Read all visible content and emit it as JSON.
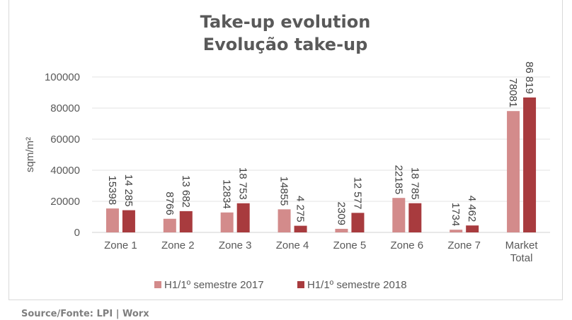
{
  "chart_data": {
    "type": "bar",
    "title": [
      "Take-up evolution",
      "Evolução take-up"
    ],
    "xlabel": "",
    "ylabel": "sqm/m²",
    "ylim": [
      0,
      100000
    ],
    "yticks": [
      0,
      20000,
      40000,
      60000,
      80000,
      100000
    ],
    "ytick_labels": [
      "0",
      "20000",
      "40000",
      "60000",
      "80000",
      "100000"
    ],
    "grid": true,
    "legend_position": "bottom",
    "categories": [
      [
        "Zone 1"
      ],
      [
        "Zone 2"
      ],
      [
        "Zone 3"
      ],
      [
        "Zone 4"
      ],
      [
        "Zone 5"
      ],
      [
        "Zone 6"
      ],
      [
        "Zone 7"
      ],
      [
        "Market",
        "Total"
      ]
    ],
    "series": [
      {
        "name": "H1/1º semestre 2017",
        "color": "#d38b8b",
        "values": [
          15398,
          8766,
          12834,
          14855,
          2309,
          22185,
          1734,
          78081
        ],
        "labels": [
          "15398",
          "8766",
          "12834",
          "14855",
          "2309",
          "22185",
          "1734",
          "78081"
        ]
      },
      {
        "name": "H1/1º semestre 2018",
        "color": "#a83b3e",
        "values": [
          14285,
          13682,
          18753,
          4275,
          12577,
          18785,
          4462,
          86819
        ],
        "labels": [
          "14 285",
          "13 682",
          "18 753",
          "4 275",
          "12 577",
          "18 785",
          "4 462",
          "86 819"
        ]
      }
    ]
  },
  "source": "Source/Fonte: LPI | Worx"
}
